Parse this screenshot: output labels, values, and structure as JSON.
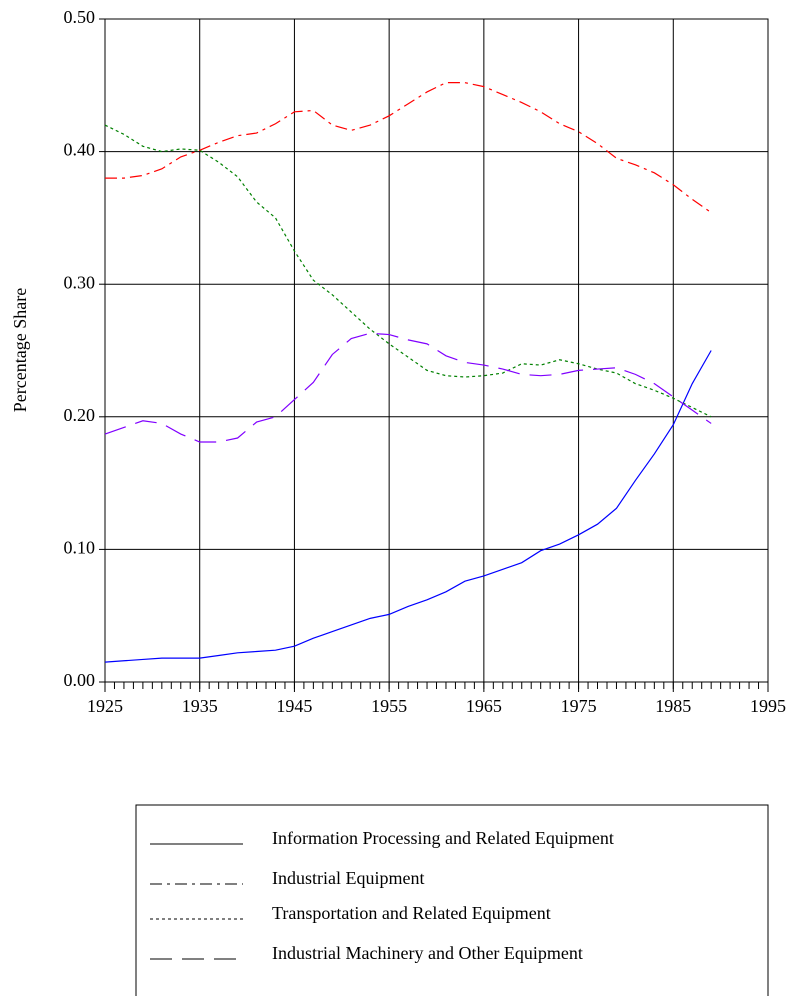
{
  "chart_data": {
    "type": "line",
    "y_label": "Percentage Share",
    "x": [
      1925,
      1927,
      1929,
      1931,
      1933,
      1935,
      1937,
      1939,
      1941,
      1943,
      1945,
      1947,
      1949,
      1951,
      1953,
      1955,
      1957,
      1959,
      1961,
      1963,
      1965,
      1967,
      1969,
      1971,
      1973,
      1975,
      1977,
      1979,
      1981,
      1983,
      1985,
      1987,
      1989
    ],
    "series": [
      {
        "name": "Information Processing and Related  Equipment",
        "color": "#0000ff",
        "values": [
          0.015,
          0.016,
          0.017,
          0.018,
          0.018,
          0.018,
          0.02,
          0.022,
          0.023,
          0.024,
          0.027,
          0.033,
          0.038,
          0.043,
          0.048,
          0.051,
          0.057,
          0.062,
          0.068,
          0.076,
          0.08,
          0.085,
          0.09,
          0.099,
          0.104,
          0.111,
          0.119,
          0.131,
          0.152,
          0.172,
          0.194,
          0.225,
          0.25
        ]
      },
      {
        "name": "Industrial Equipment",
        "color": "#ff0000",
        "values": [
          0.38,
          0.38,
          0.382,
          0.387,
          0.396,
          0.401,
          0.407,
          0.412,
          0.414,
          0.421,
          0.43,
          0.431,
          0.42,
          0.416,
          0.42,
          0.427,
          0.436,
          0.445,
          0.452,
          0.452,
          0.449,
          0.443,
          0.437,
          0.43,
          0.421,
          0.415,
          0.406,
          0.395,
          0.39,
          0.384,
          0.375,
          0.364,
          0.354
        ]
      },
      {
        "name": "Transportation and Related Equipment",
        "color": "#008000",
        "values": [
          0.42,
          0.413,
          0.404,
          0.4,
          0.402,
          0.401,
          0.392,
          0.381,
          0.362,
          0.35,
          0.325,
          0.303,
          0.292,
          0.279,
          0.266,
          0.255,
          0.245,
          0.235,
          0.231,
          0.23,
          0.231,
          0.233,
          0.24,
          0.239,
          0.243,
          0.24,
          0.236,
          0.233,
          0.225,
          0.22,
          0.214,
          0.207,
          0.2
        ]
      },
      {
        "name": "Industrial Machinery and Other Equipment",
        "color": "#8000ff",
        "values": [
          0.187,
          0.192,
          0.197,
          0.195,
          0.187,
          0.181,
          0.181,
          0.184,
          0.196,
          0.2,
          0.213,
          0.226,
          0.247,
          0.259,
          0.263,
          0.262,
          0.258,
          0.255,
          0.246,
          0.241,
          0.239,
          0.236,
          0.232,
          0.231,
          0.232,
          0.235,
          0.236,
          0.237,
          0.232,
          0.225,
          0.215,
          0.205,
          0.195
        ]
      }
    ],
    "xlim": [
      1925,
      1995
    ],
    "xticks": [
      1925,
      1935,
      1945,
      1955,
      1965,
      1975,
      1985,
      1995
    ],
    "ylim": [
      0,
      0.5
    ],
    "yticks": [
      {
        "value": 0,
        "label": "0.00"
      },
      {
        "value": 0.1,
        "label": "0.10"
      },
      {
        "value": 0.2,
        "label": "0.20"
      },
      {
        "value": 0.3,
        "label": "0.30"
      },
      {
        "value": 0.4,
        "label": "0.40"
      },
      {
        "value": 0.5,
        "label": "0.50"
      }
    ],
    "grid": true
  }
}
